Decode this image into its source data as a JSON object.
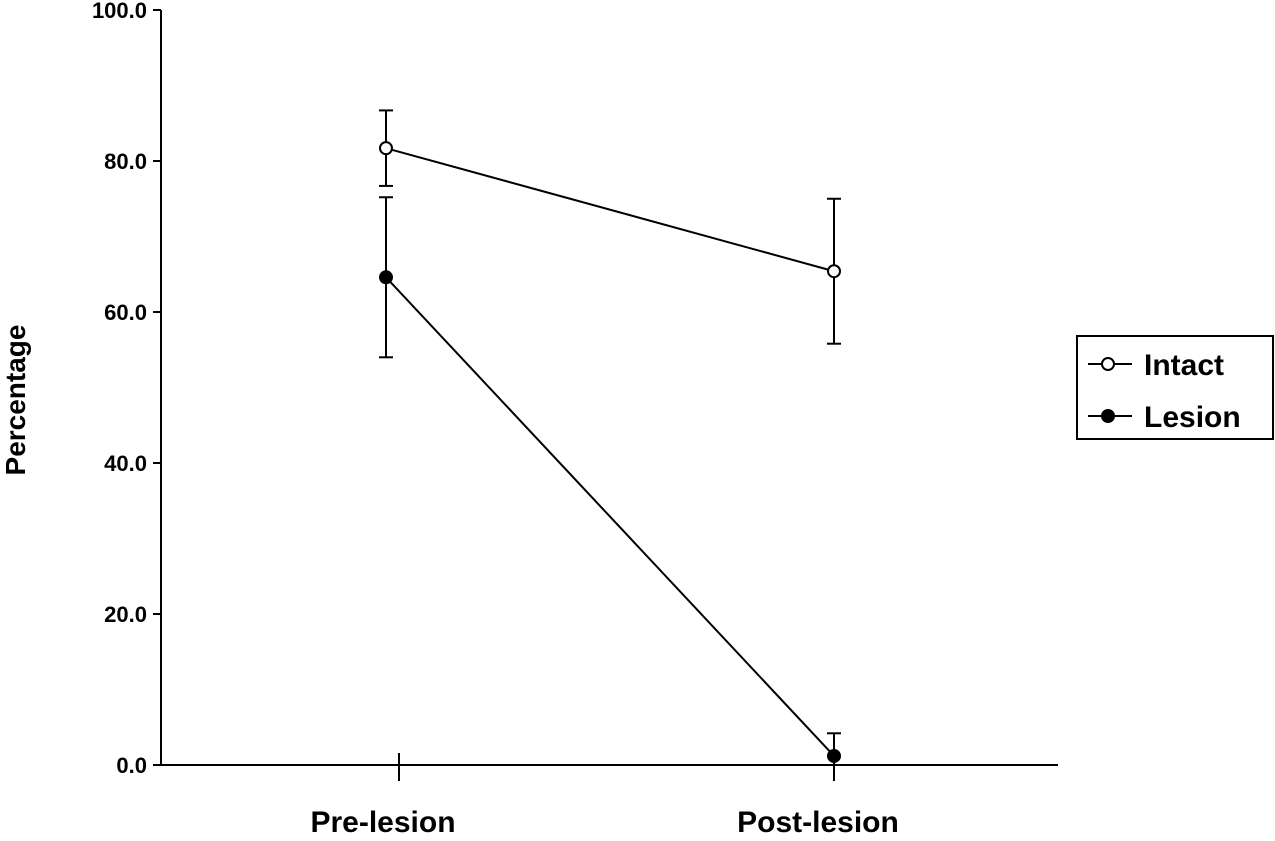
{
  "chart_data": {
    "type": "line",
    "title": "",
    "xlabel": "",
    "ylabel": "Percentage",
    "categories": [
      "Pre-lesion",
      "Post-lesion"
    ],
    "ylim": [
      0,
      100
    ],
    "yticks": [
      "0.0",
      "20.0",
      "40.0",
      "60.0",
      "80.0",
      "100.0"
    ],
    "legend_position": "right",
    "series": [
      {
        "name": "Intact",
        "marker": "open-circle",
        "values": [
          81.7,
          65.4
        ],
        "error": [
          5.0,
          9.6
        ]
      },
      {
        "name": "Lesion",
        "marker": "filled-circle",
        "values": [
          64.6,
          1.2
        ],
        "error": [
          10.6,
          3.0
        ]
      }
    ],
    "grid": false
  }
}
